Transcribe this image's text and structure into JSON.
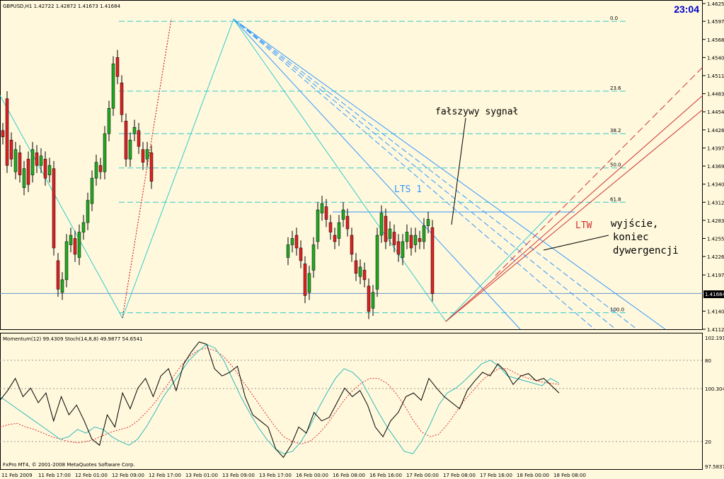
{
  "chart_data": {
    "type": "candlestick",
    "main_header": "GBPUSD,H1  1.42722 1.42872 1.41673 1.41684",
    "clock": "23:04",
    "price_axis_ticks": [
      "1.46250",
      "1.45970",
      "1.45685",
      "1.45400",
      "1.45115",
      "1.44830",
      "1.44545",
      "1.44260",
      "1.43975",
      "1.43690",
      "1.43405",
      "1.43120",
      "1.42835",
      "1.42550",
      "1.42265",
      "1.41975",
      "1.41405",
      "1.41120"
    ],
    "current_price": "1.41684",
    "fib_levels": [
      {
        "label": "0.0",
        "price": 1.4597
      },
      {
        "label": "23.6",
        "price": 1.4487
      },
      {
        "label": "38.2",
        "price": 1.442
      },
      {
        "label": "50.0",
        "price": 1.4366
      },
      {
        "label": "61.8",
        "price": 1.4312
      },
      {
        "label": "100.0",
        "price": 1.4138
      }
    ],
    "annotations": {
      "false_signal": "fałszywy sygnał",
      "lts": "LTS 1",
      "ltw": "LTW",
      "exit_line1": "wyjście,",
      "exit_line2": "koniec",
      "exit_line3": "dywergencji"
    },
    "sub_header": "Momentum(12) 99.4309  Stoch(14,8,8) 49.9877 54.6541",
    "sub_axis_ticks": [
      "102.1919",
      "80",
      "100.3046",
      "20",
      "97.5837"
    ],
    "copyright": "FxPro MT4, © 2001-2008 MetaQuotes Software Corp.",
    "time_labels": [
      "11 Feb 2009",
      "11 Feb 17:00",
      "12 Feb 01:00",
      "12 Feb 09:00",
      "12 Feb 17:00",
      "13 Feb 01:00",
      "13 Feb 09:00",
      "13 Feb 17:00",
      "16 Feb 00:00",
      "16 Feb 08:00",
      "16 Feb 16:00",
      "17 Feb 00:00",
      "17 Feb 08:00",
      "17 Feb 16:00",
      "18 Feb 00:00",
      "18 Feb 08:00"
    ],
    "candles_segments": [
      {
        "gap_start": false,
        "anchors": [
          [
            1.4425,
            1.4415
          ],
          [
            1.4475,
            1.437
          ],
          [
            1.441,
            1.438
          ],
          [
            1.436,
            1.4395
          ],
          [
            1.439,
            1.4355
          ],
          [
            1.4335,
            1.4365
          ],
          [
            1.438,
            1.434
          ],
          [
            1.4355,
            1.4395
          ],
          [
            1.439,
            1.437
          ],
          [
            1.437,
            1.4385
          ],
          [
            1.438,
            1.435
          ],
          [
            1.4355,
            1.437
          ],
          [
            1.4365,
            1.424
          ],
          [
            1.422,
            1.4175
          ],
          [
            1.417,
            1.419
          ],
          [
            1.419,
            1.425
          ],
          [
            1.4245,
            1.426
          ],
          [
            1.4255,
            1.423
          ],
          [
            1.4225,
            1.4265
          ],
          [
            1.4265,
            1.428
          ],
          [
            1.428,
            1.4315
          ],
          [
            1.431,
            1.435
          ],
          [
            1.435,
            1.4375
          ],
          [
            1.437,
            1.436
          ],
          [
            1.436,
            1.442
          ],
          [
            1.442,
            1.446
          ],
          [
            1.446,
            1.453
          ],
          [
            1.454,
            1.451
          ],
          [
            1.45,
            1.445
          ],
          [
            1.444,
            1.438
          ],
          [
            1.438,
            1.441
          ],
          [
            1.442,
            1.443
          ],
          [
            1.4425,
            1.44
          ],
          [
            1.4395,
            1.4375
          ],
          [
            1.438,
            1.4395
          ],
          [
            1.439,
            1.4345
          ]
        ]
      },
      {
        "gap_start": true,
        "anchors": [
          [
            1.4225,
            1.4245
          ],
          [
            1.4245,
            1.4255
          ],
          [
            1.426,
            1.424
          ],
          [
            1.424,
            1.422
          ],
          [
            1.4215,
            1.4165
          ],
          [
            1.417,
            1.42
          ],
          [
            1.4205,
            1.4245
          ],
          [
            1.425,
            1.43
          ],
          [
            1.4295,
            1.431
          ],
          [
            1.4305,
            1.4285
          ],
          [
            1.428,
            1.4265
          ],
          [
            1.426,
            1.425
          ],
          [
            1.4255,
            1.428
          ],
          [
            1.4285,
            1.43
          ],
          [
            1.429,
            1.427
          ],
          [
            1.426,
            1.423
          ],
          [
            1.422,
            1.42
          ],
          [
            1.4195,
            1.421
          ],
          [
            1.4205,
            1.419
          ],
          [
            1.418,
            1.414
          ],
          [
            1.4145,
            1.417
          ],
          [
            1.4175,
            1.426
          ],
          [
            1.426,
            1.4295
          ],
          [
            1.429,
            1.425
          ],
          [
            1.4255,
            1.427
          ],
          [
            1.4265,
            1.4245
          ],
          [
            1.425,
            1.423
          ],
          [
            1.4225,
            1.425
          ],
          [
            1.425,
            1.4265
          ],
          [
            1.426,
            1.424
          ],
          [
            1.4245,
            1.426
          ],
          [
            1.4255,
            1.425
          ],
          [
            1.425,
            1.4275
          ],
          [
            1.4275,
            1.4285
          ],
          [
            1.4272,
            1.4168
          ]
        ]
      }
    ],
    "momentum_line": [
      0.52,
      0.6,
      0.7,
      0.55,
      0.62,
      0.5,
      0.58,
      0.35,
      0.55,
      0.4,
      0.48,
      0.35,
      0.2,
      0.15,
      0.4,
      0.3,
      0.58,
      0.45,
      0.62,
      0.7,
      0.55,
      0.72,
      0.78,
      0.6,
      0.82,
      0.92,
      1.0,
      0.98,
      0.78,
      0.72,
      0.75,
      0.8,
      0.55,
      0.4,
      0.35,
      0.3,
      0.12,
      0.05,
      0.15,
      0.3,
      0.25,
      0.42,
      0.35,
      0.38,
      0.5,
      0.62,
      0.55,
      0.6,
      0.48,
      0.3,
      0.22,
      0.35,
      0.42,
      0.55,
      0.58,
      0.52,
      0.7,
      0.62,
      0.55,
      0.5,
      0.45,
      0.6,
      0.68,
      0.75,
      0.72,
      0.82,
      0.76,
      0.65,
      0.72,
      0.74,
      0.68,
      0.7,
      0.64,
      0.58
    ],
    "stoch_main": [
      0.55,
      0.5,
      0.45,
      0.4,
      0.35,
      0.3,
      0.25,
      0.2,
      0.22,
      0.28,
      0.25,
      0.3,
      0.28,
      0.22,
      0.18,
      0.15,
      0.2,
      0.3,
      0.42,
      0.55,
      0.65,
      0.75,
      0.85,
      0.92,
      0.98,
      0.95,
      0.85,
      0.7,
      0.55,
      0.42,
      0.3,
      0.2,
      0.12,
      0.08,
      0.1,
      0.18,
      0.3,
      0.45,
      0.58,
      0.7,
      0.78,
      0.75,
      0.68,
      0.55,
      0.42,
      0.3,
      0.2,
      0.1,
      0.08,
      0.18,
      0.32,
      0.48,
      0.58,
      0.62,
      0.68,
      0.75,
      0.82,
      0.85,
      0.8,
      0.72,
      0.7,
      0.68,
      0.66,
      0.64,
      0.7,
      0.66
    ],
    "stoch_signal": [
      0.3,
      0.32,
      0.33,
      0.3,
      0.28,
      0.25,
      0.22,
      0.2,
      0.18,
      0.17,
      0.18,
      0.2,
      0.23,
      0.26,
      0.28,
      0.3,
      0.35,
      0.42,
      0.5,
      0.6,
      0.7,
      0.8,
      0.88,
      0.93,
      0.95,
      0.93,
      0.88,
      0.8,
      0.7,
      0.6,
      0.5,
      0.4,
      0.3,
      0.22,
      0.18,
      0.16,
      0.18,
      0.24,
      0.32,
      0.42,
      0.52,
      0.6,
      0.66,
      0.7,
      0.7,
      0.66,
      0.58,
      0.48,
      0.36,
      0.26,
      0.22,
      0.24,
      0.32,
      0.42,
      0.52,
      0.6,
      0.68,
      0.74,
      0.78,
      0.78,
      0.74,
      0.71,
      0.69,
      0.67,
      0.66,
      0.65
    ]
  }
}
